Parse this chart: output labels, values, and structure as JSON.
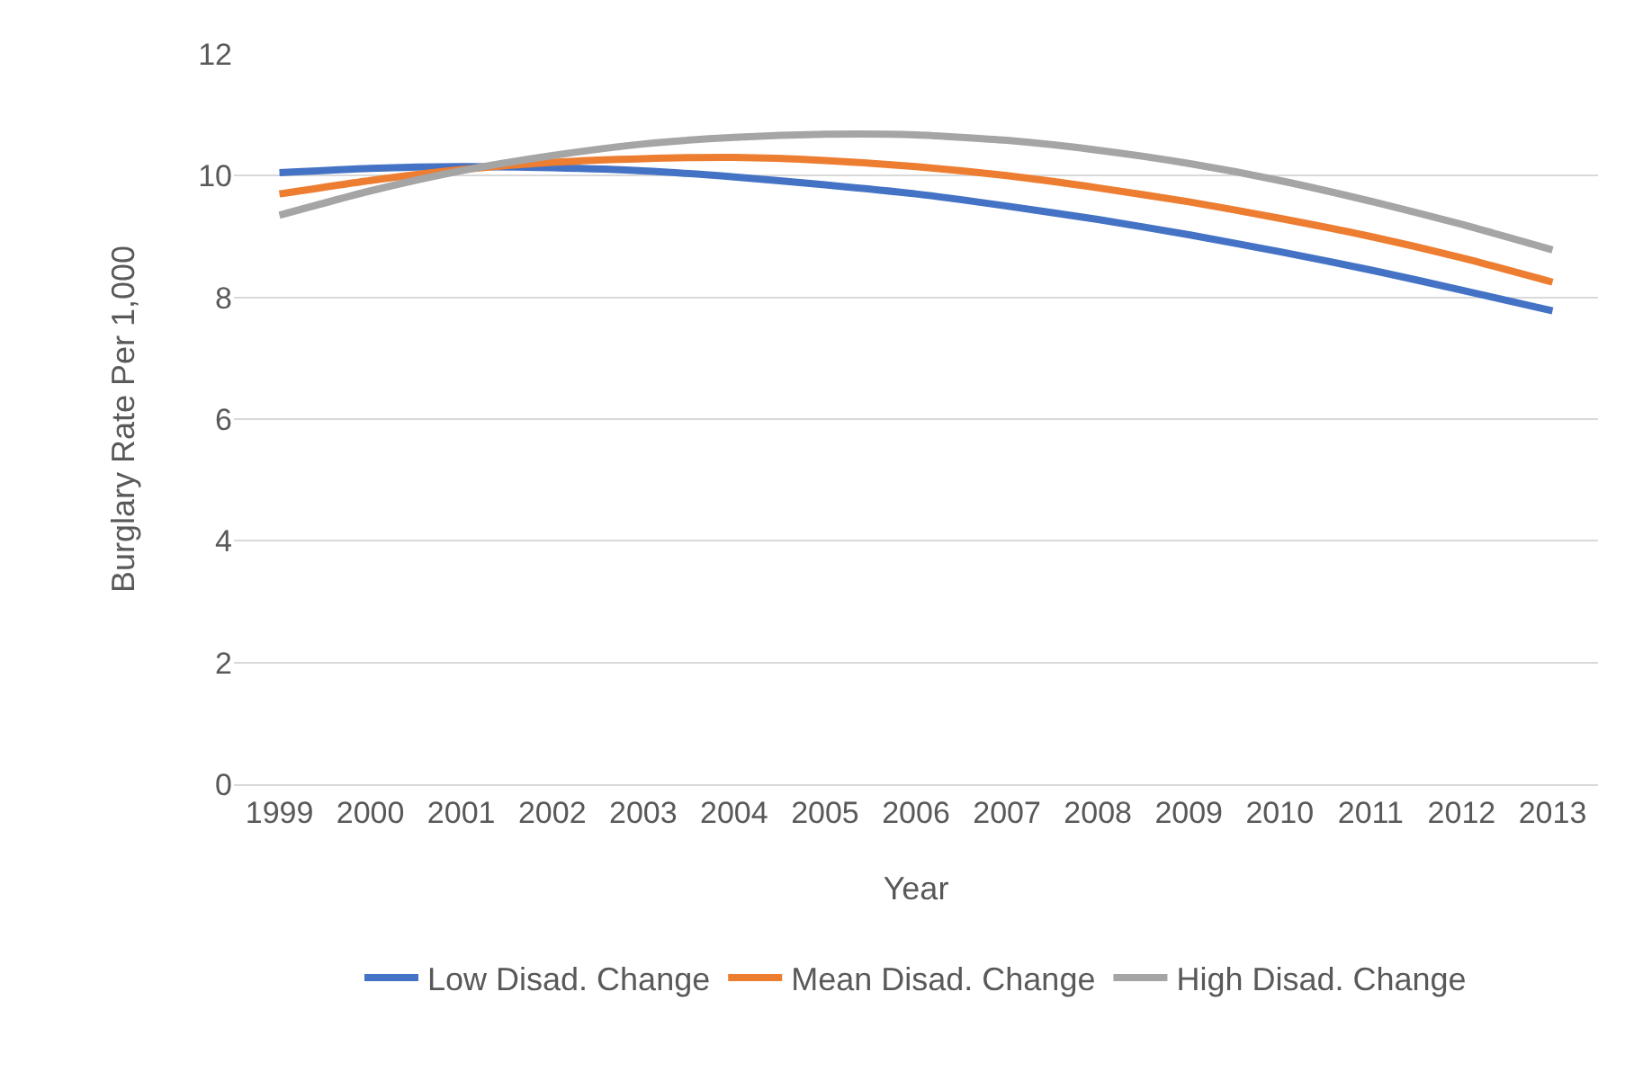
{
  "chart_data": {
    "type": "line",
    "xlabel": "Year",
    "ylabel": "Burglary Rate Per 1,000",
    "categories": [
      "1999",
      "2000",
      "2001",
      "2002",
      "2003",
      "2004",
      "2005",
      "2006",
      "2007",
      "2008",
      "2009",
      "2010",
      "2011",
      "2012",
      "2013"
    ],
    "series": [
      {
        "name": "Low Disad. Change",
        "color": "#4472c4",
        "values": [
          10.05,
          10.12,
          10.15,
          10.13,
          10.08,
          9.98,
          9.85,
          9.7,
          9.5,
          9.28,
          9.03,
          8.75,
          8.45,
          8.12,
          7.78
        ]
      },
      {
        "name": "Mean Disad. Change",
        "color": "#ed7d31",
        "values": [
          9.7,
          9.92,
          10.1,
          10.22,
          10.28,
          10.3,
          10.25,
          10.15,
          10.0,
          9.8,
          9.57,
          9.3,
          9.0,
          8.65,
          8.25
        ]
      },
      {
        "name": "High Disad. Change",
        "color": "#a5a5a5",
        "values": [
          9.35,
          9.75,
          10.08,
          10.33,
          10.52,
          10.63,
          10.68,
          10.67,
          10.58,
          10.42,
          10.2,
          9.92,
          9.58,
          9.2,
          8.78
        ]
      }
    ],
    "ylim": [
      0,
      12
    ],
    "yticks": [
      0,
      2,
      4,
      6,
      8,
      10,
      12
    ],
    "grid": "y",
    "legend": "bottom",
    "marker": "none",
    "line_style": "solid"
  }
}
